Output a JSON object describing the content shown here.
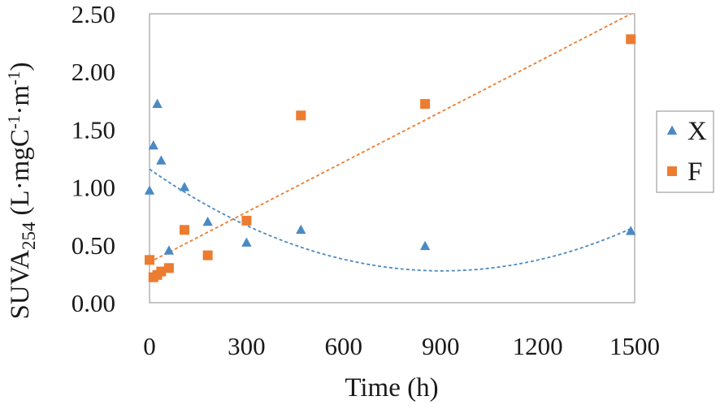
{
  "chart_data": {
    "type": "scatter",
    "title": "",
    "xlabel": "Time (h)",
    "ylabel": {
      "base": "SUVA",
      "subscript": "254",
      "units_open": "(L·mgC",
      "exp1": "-1",
      "units_mid": "·m",
      "exp2": "-1",
      "units_close": ")"
    },
    "xlim": [
      0,
      1500
    ],
    "ylim": [
      0,
      2.5
    ],
    "x_ticks": [
      0,
      300,
      600,
      900,
      1200,
      1500
    ],
    "x_tick_labels": [
      "0",
      "300",
      "600",
      "900",
      "1200",
      "1500"
    ],
    "y_ticks": [
      0,
      0.5,
      1.0,
      1.5,
      2.0,
      2.5
    ],
    "y_tick_labels": [
      "0.00",
      "0.50",
      "1.00",
      "1.50",
      "2.00",
      "2.50"
    ],
    "legend_position": "right",
    "series": [
      {
        "name": "X",
        "marker": "triangle",
        "color": "#4a8ac4",
        "points": [
          {
            "x": 0,
            "y": 0.97
          },
          {
            "x": 12,
            "y": 1.36
          },
          {
            "x": 24,
            "y": 1.72
          },
          {
            "x": 36,
            "y": 1.23
          },
          {
            "x": 60,
            "y": 0.45
          },
          {
            "x": 108,
            "y": 1.0
          },
          {
            "x": 180,
            "y": 0.7
          },
          {
            "x": 300,
            "y": 0.52
          },
          {
            "x": 468,
            "y": 0.63
          },
          {
            "x": 852,
            "y": 0.49
          },
          {
            "x": 1488,
            "y": 0.62
          }
        ],
        "trendline": {
          "kind": "polynomial",
          "color": "#4a8ac4",
          "coefficients": {
            "a": 1.074e-06,
            "b": -0.001944,
            "c": 1.155
          },
          "x_range": [
            0,
            1488
          ]
        }
      },
      {
        "name": "F",
        "marker": "square",
        "color": "#ec7c30",
        "points": [
          {
            "x": 0,
            "y": 0.37
          },
          {
            "x": 12,
            "y": 0.22
          },
          {
            "x": 24,
            "y": 0.24
          },
          {
            "x": 36,
            "y": 0.27
          },
          {
            "x": 60,
            "y": 0.3
          },
          {
            "x": 108,
            "y": 0.63
          },
          {
            "x": 180,
            "y": 0.41
          },
          {
            "x": 300,
            "y": 0.71
          },
          {
            "x": 468,
            "y": 1.62
          },
          {
            "x": 852,
            "y": 1.72
          },
          {
            "x": 1488,
            "y": 2.28
          }
        ],
        "trendline": {
          "kind": "linear",
          "color": "#ec7c30",
          "coefficients": {
            "slope": 0.001444,
            "intercept": 0.35
          },
          "x_range": [
            0,
            1488
          ]
        }
      }
    ]
  }
}
